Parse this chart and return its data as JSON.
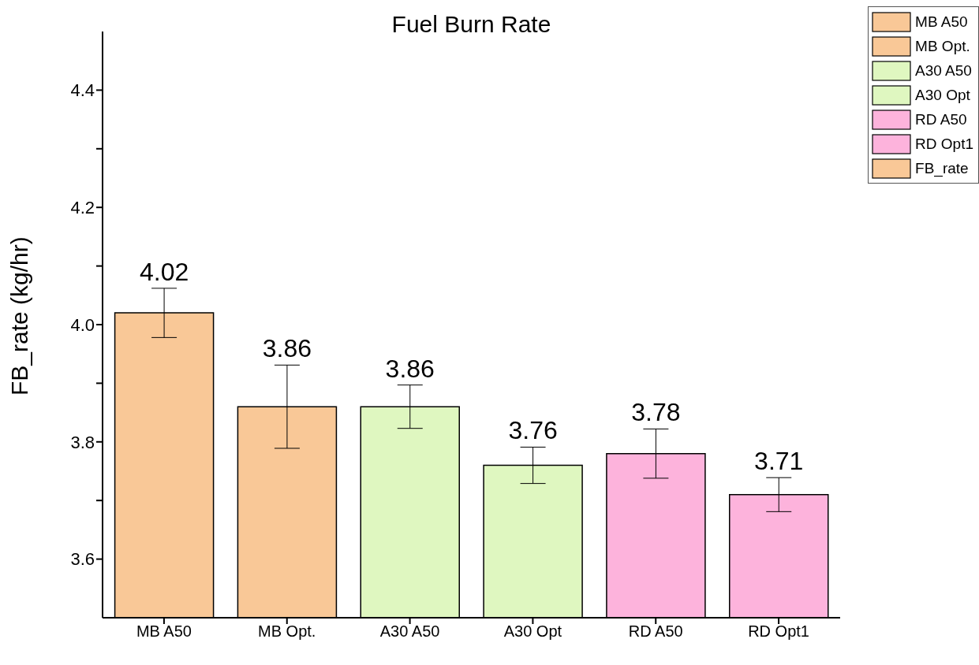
{
  "chart_data": {
    "type": "bar",
    "title": "Fuel Burn Rate",
    "ylabel": "FB_rate (kg/hr)",
    "categories": [
      "MB A50",
      "MB Opt.",
      "A30 A50",
      "A30 Opt",
      "RD A50",
      "RD Opt1"
    ],
    "series": [
      {
        "name": "FB_rate",
        "color": "#f9c897",
        "colors": [
          "#f9c897",
          "#f9c897",
          "#dff7c0",
          "#dff7c0",
          "#fdb3dc",
          "#fdb3dc"
        ],
        "values": [
          4.02,
          3.86,
          3.86,
          3.76,
          3.78,
          3.71
        ],
        "errors": [
          0.042,
          0.071,
          0.037,
          0.031,
          0.042,
          0.029
        ]
      }
    ],
    "ylim": [
      3.5,
      4.5
    ],
    "yticks": [
      {
        "value": 3.6,
        "label": "3.6"
      },
      {
        "value": 3.7,
        "label": null
      },
      {
        "value": 3.8,
        "label": "3.8"
      },
      {
        "value": 3.9,
        "label": null
      },
      {
        "value": 4.0,
        "label": "4.0"
      },
      {
        "value": 4.1,
        "label": null
      },
      {
        "value": 4.2,
        "label": "4.2"
      },
      {
        "value": 4.3,
        "label": null
      },
      {
        "value": 4.4,
        "label": "4.4"
      }
    ],
    "data_labels": true,
    "grid": false,
    "legend": "top right"
  }
}
